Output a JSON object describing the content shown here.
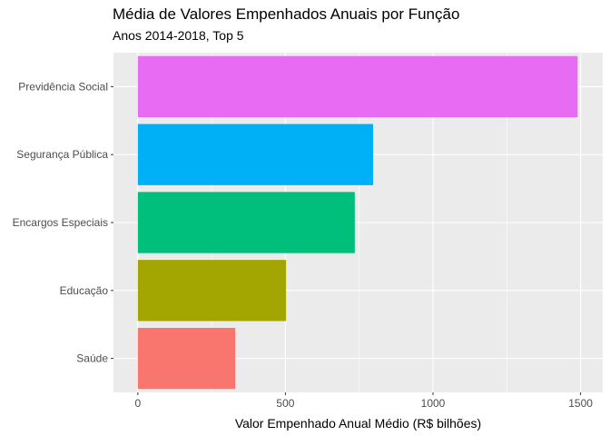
{
  "chart_data": {
    "type": "bar",
    "orientation": "horizontal",
    "title": "Média de Valores Empenhados Anuais por Função",
    "subtitle": "Anos 2014-2018, Top 5",
    "xlabel": "Valor Empenhado Anual Médio (R$ bilhões)",
    "ylabel": "",
    "categories": [
      "Saúde",
      "Educação",
      "Encargos Especiais",
      "Segurança Pública",
      "Previdência Social"
    ],
    "values": [
      330,
      502,
      735,
      797,
      1490
    ],
    "colors": [
      "#F8766D",
      "#A3A500",
      "#00BF7D",
      "#00B0F6",
      "#E76BF3"
    ],
    "xlim": [
      -82.5,
      1575
    ],
    "xticks": [
      0,
      500,
      1000,
      1500
    ],
    "xtick_labels": [
      "0",
      "500",
      "1000",
      "1500"
    ],
    "grid": true,
    "legend": "none",
    "panel_background": "#EBEBEB"
  }
}
